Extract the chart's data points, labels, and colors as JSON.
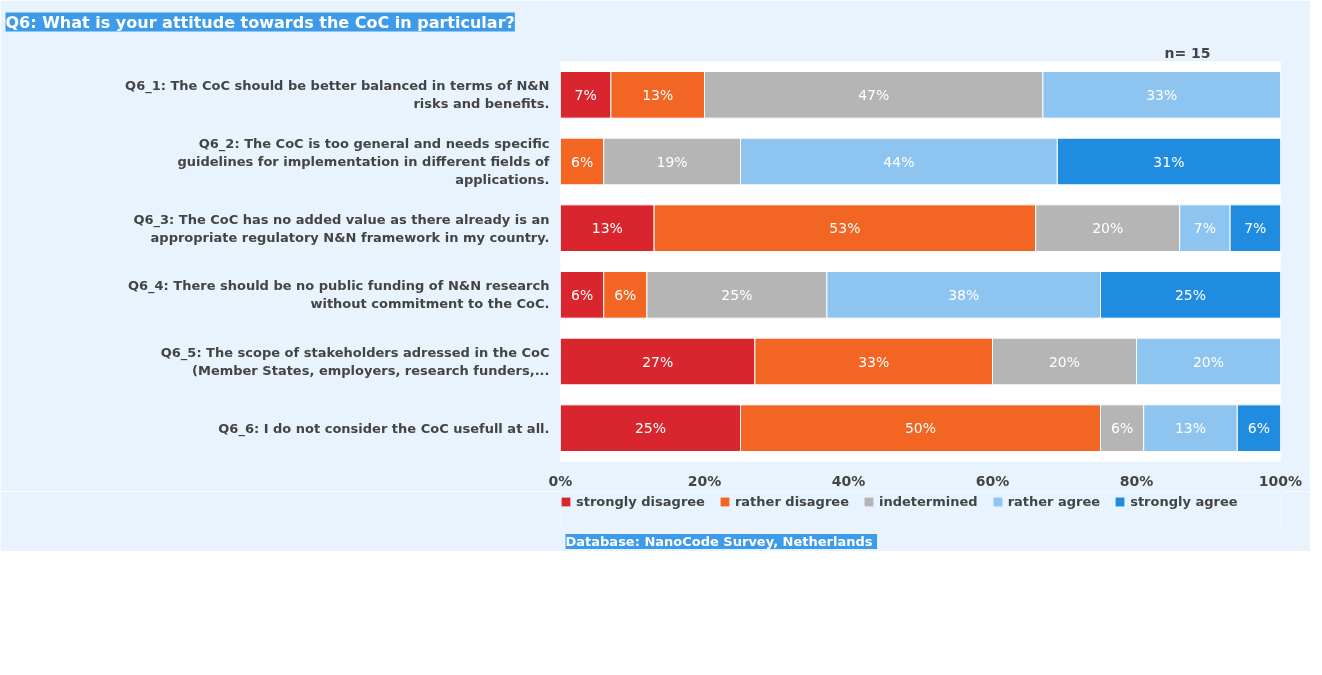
{
  "chart_data": {
    "type": "bar",
    "orientation": "horizontal",
    "stacked": true,
    "title": "Q6: What is your attitude towards the CoC in particular?",
    "categories": [
      "Q6_1: The CoC should be better balanced in terms of N&N risks and benefits.",
      "Q6_2: The CoC is too general and needs specific guidelines for implementation in different fields of applications.",
      "Q6_3: The CoC has no added value as there already is an appropriate regulatory N&N framework in my country.",
      "Q6_4: There should be no public funding of N&N research without commitment to the CoC.",
      "Q6_5: The scope of stakeholders adressed in the CoC (Member States, employers, research funders,...",
      "Q6_6: I do not consider the CoC usefull at all."
    ],
    "series": [
      {
        "name": "strongly disagree",
        "color": "#d9262e",
        "values": [
          7,
          null,
          13,
          6,
          27,
          25
        ],
        "value_labels": [
          "7%",
          null,
          "13%",
          "6%",
          "27%",
          "25%"
        ]
      },
      {
        "name": "rather disagree",
        "color": "#f26522",
        "values": [
          13,
          6,
          53,
          6,
          33,
          50
        ],
        "value_labels": [
          "13%",
          "6%",
          "53%",
          "6%",
          "33%",
          "50%"
        ]
      },
      {
        "name": "indetermined",
        "color": "#b5b5b5",
        "values": [
          47,
          19,
          20,
          25,
          20,
          6
        ],
        "value_labels": [
          "47%",
          "19%",
          "20%",
          "25%",
          "20%",
          "6%"
        ]
      },
      {
        "name": "rather agree",
        "color": "#8ec4f0",
        "values": [
          33,
          44,
          7,
          38,
          20,
          13
        ],
        "value_labels": [
          "33%",
          "44%",
          "7%",
          "38%",
          "20%",
          "13%"
        ]
      },
      {
        "name": "strongly agree",
        "color": "#1f8ce0",
        "values": [
          null,
          31,
          7,
          25,
          null,
          6
        ],
        "value_labels": [
          null,
          "31%",
          "7%",
          "25%",
          null,
          "6%"
        ]
      }
    ],
    "xlim": [
      0,
      100
    ],
    "xticks": [
      {
        "value": 0,
        "label": "0%"
      },
      {
        "value": 20,
        "label": "20%"
      },
      {
        "value": 40,
        "label": "40%"
      },
      {
        "value": 60,
        "label": "60%"
      },
      {
        "value": 80,
        "label": "80%"
      },
      {
        "value": 100,
        "label": "100%"
      }
    ],
    "legend": "bottom",
    "annotations": [
      "n= 15",
      "Database: NanoCode Survey,  Netherlands"
    ]
  }
}
